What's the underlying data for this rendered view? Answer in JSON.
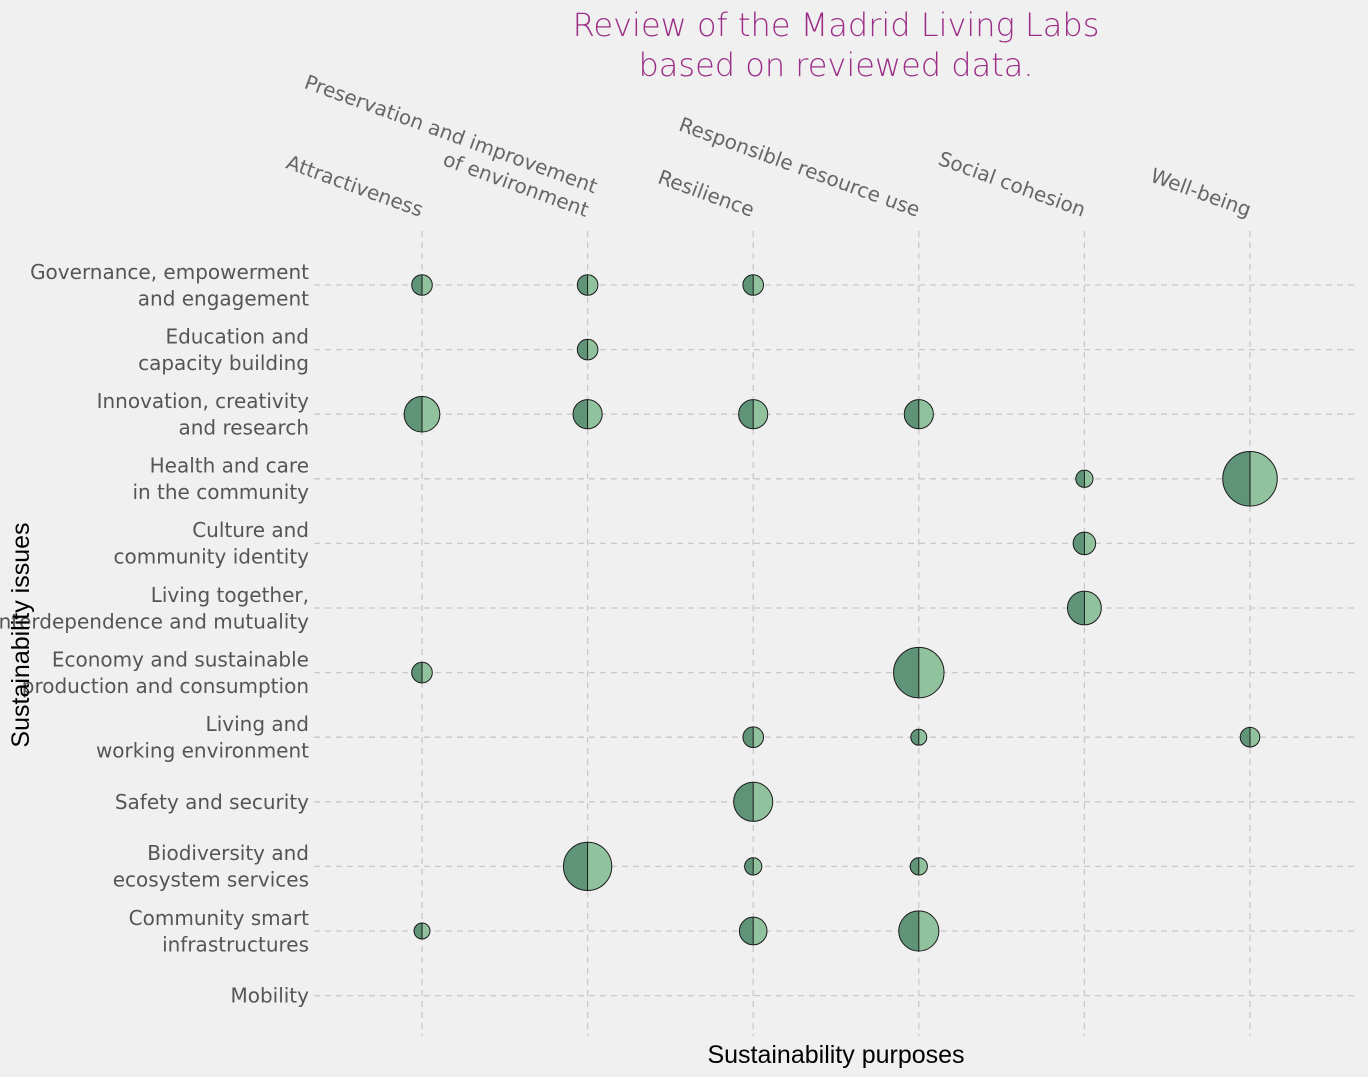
{
  "chart_data": {
    "type": "scatter",
    "title": [
      "Review of the Madrid Living Labs",
      "based on reviewed data."
    ],
    "xlabel": "Sustainability purposes",
    "ylabel": "Sustainability issues",
    "x_categories": [
      [
        "Attractiveness"
      ],
      [
        "Preservation and improvement",
        "of environment"
      ],
      [
        "Resilience"
      ],
      [
        "Responsible resource use"
      ],
      [
        "Social cohesion"
      ],
      [
        "Well-being"
      ]
    ],
    "y_categories": [
      [
        "Governance, empowerment",
        "and engagement"
      ],
      [
        "Education and",
        "capacity building"
      ],
      [
        "Innovation, creativity",
        "and research"
      ],
      [
        "Health and care",
        "in the community"
      ],
      [
        "Culture and",
        "community identity"
      ],
      [
        "Living together,",
        "interdependence and mutuality"
      ],
      [
        "Economy and sustainable",
        "production and consumption"
      ],
      [
        "Living and",
        "working environment"
      ],
      [
        "Safety and security"
      ],
      [
        "Biodiversity and",
        "ecosystem services"
      ],
      [
        "Community smart",
        "infrastructures"
      ],
      [
        "Mobility"
      ]
    ],
    "colors": {
      "left_half": "#5f9478",
      "right_half": "#90c29e",
      "edge": "#1a1a1a",
      "title": "#9b2d86"
    },
    "grid": true,
    "points": [
      {
        "x": 0,
        "y": 0,
        "size": 1
      },
      {
        "x": 1,
        "y": 0,
        "size": 1
      },
      {
        "x": 2,
        "y": 0,
        "size": 1
      },
      {
        "x": 1,
        "y": 1,
        "size": 1
      },
      {
        "x": 0,
        "y": 2,
        "size": 3
      },
      {
        "x": 1,
        "y": 2,
        "size": 2
      },
      {
        "x": 2,
        "y": 2,
        "size": 2
      },
      {
        "x": 3,
        "y": 2,
        "size": 2
      },
      {
        "x": 4,
        "y": 3,
        "size": 0.7
      },
      {
        "x": 5,
        "y": 3,
        "size": 7
      },
      {
        "x": 4,
        "y": 4,
        "size": 1.2
      },
      {
        "x": 4,
        "y": 5,
        "size": 2.7
      },
      {
        "x": 0,
        "y": 6,
        "size": 1
      },
      {
        "x": 3,
        "y": 6,
        "size": 6
      },
      {
        "x": 2,
        "y": 7,
        "size": 1
      },
      {
        "x": 3,
        "y": 7,
        "size": 0.6
      },
      {
        "x": 5,
        "y": 7,
        "size": 0.9
      },
      {
        "x": 2,
        "y": 8,
        "size": 3.6
      },
      {
        "x": 1,
        "y": 9,
        "size": 5.5
      },
      {
        "x": 2,
        "y": 9,
        "size": 0.7
      },
      {
        "x": 3,
        "y": 9,
        "size": 0.7
      },
      {
        "x": 0,
        "y": 10,
        "size": 0.6
      },
      {
        "x": 2,
        "y": 10,
        "size": 1.8
      },
      {
        "x": 3,
        "y": 10,
        "size": 3.8
      }
    ]
  }
}
